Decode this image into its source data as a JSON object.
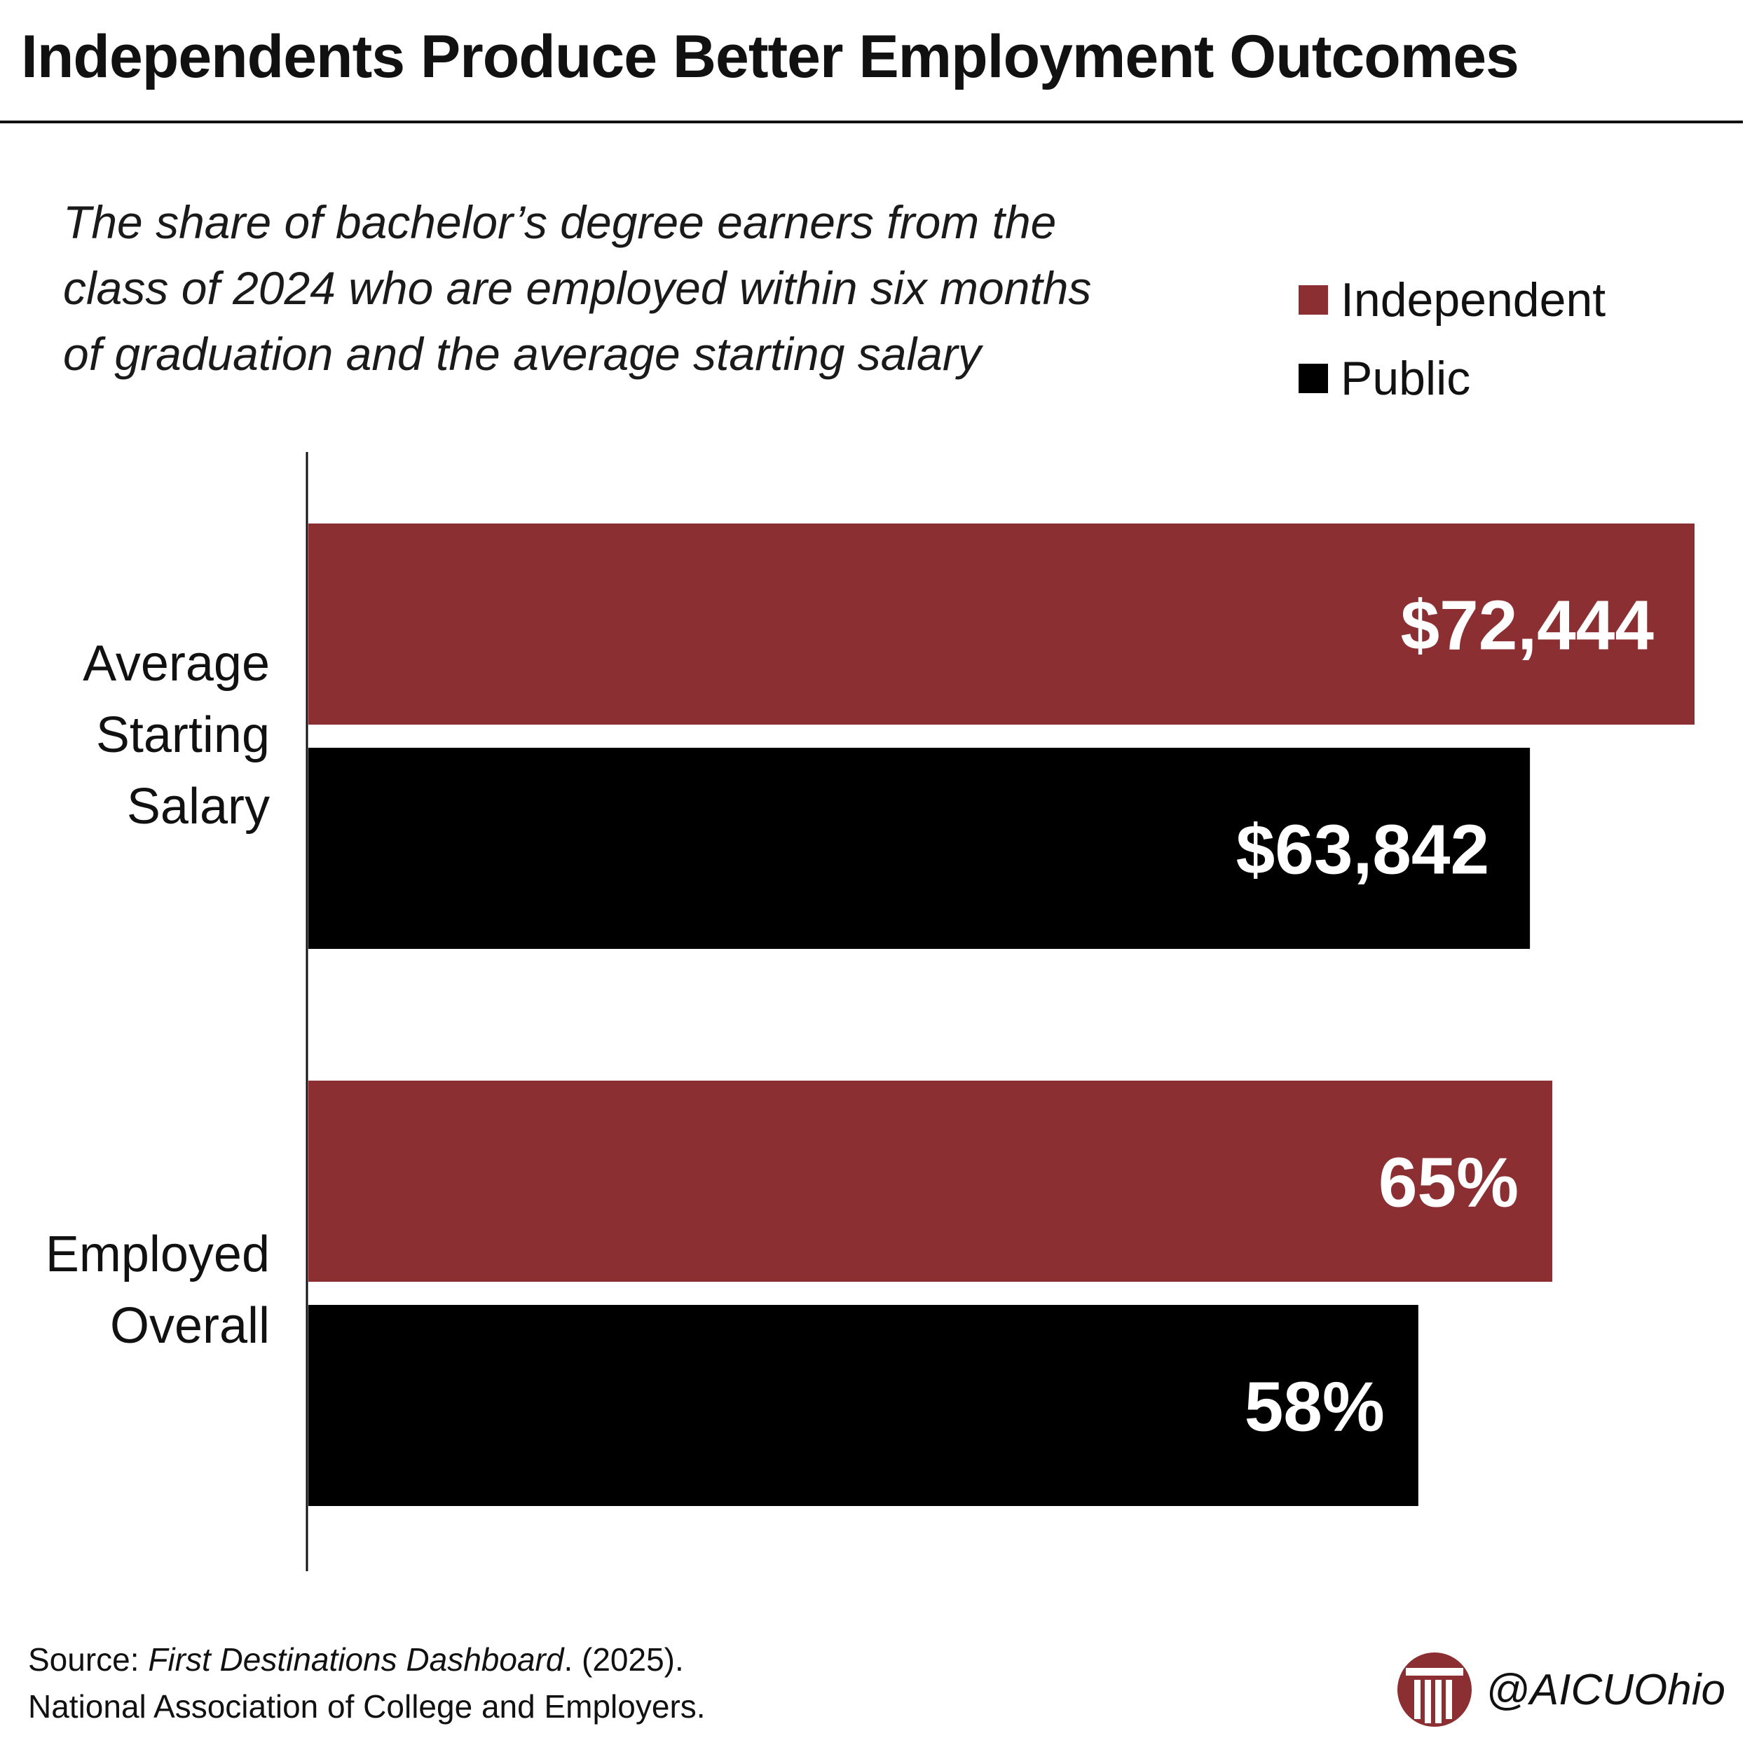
{
  "title": "Independents Produce Better Employment Outcomes",
  "subtitle_lines": [
    "The share of bachelor’s degree earners from the",
    "class of 2024 who are employed within six months",
    "of graduation and the average starting salary"
  ],
  "legend": [
    {
      "label": "Independent",
      "color": "#8B2F32"
    },
    {
      "label": "Public",
      "color": "#000000"
    }
  ],
  "chart_data": {
    "type": "bar",
    "orientation": "horizontal",
    "categories": [
      "Average Starting Salary",
      "Employed Overall"
    ],
    "category_label_lines": [
      [
        "Average",
        "Starting",
        "Salary"
      ],
      [
        "Employed",
        "Overall"
      ]
    ],
    "series": [
      {
        "name": "Independent",
        "color": "#8B2F32",
        "values": [
          72444,
          65
        ],
        "labels": [
          "$72,444",
          "65%"
        ]
      },
      {
        "name": "Public",
        "color": "#000000",
        "values": [
          63842,
          58
        ],
        "labels": [
          "$63,842",
          "58%"
        ]
      }
    ],
    "units": [
      "USD",
      "percent"
    ],
    "grid": false,
    "legend_position": "top-right"
  },
  "source": {
    "prefix": "Source: ",
    "title": "First Destinations Dashboard",
    "suffix": ". (2025).",
    "line2": "National Association of College and Employers."
  },
  "brand": {
    "logo_icon": "column-pillar-icon",
    "logo_color": "#8B2F32",
    "handle": "@AICUOhio"
  }
}
